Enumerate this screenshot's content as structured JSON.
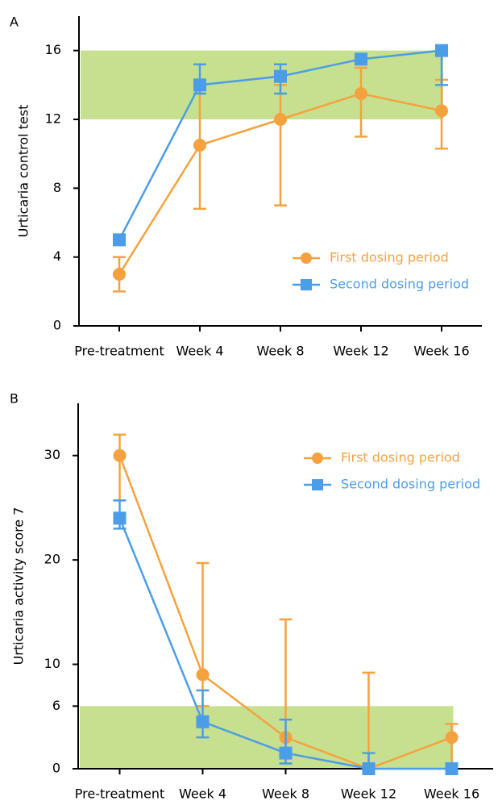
{
  "chart_data": [
    {
      "type": "line",
      "panel": "A",
      "ylabel": "Urticaria control test",
      "categories": [
        "Pre-treatment",
        "Week 4",
        "Week 8",
        "Week 12",
        "Week 16"
      ],
      "ylim": [
        0,
        18
      ],
      "yticks": [
        0,
        4,
        8,
        12,
        16
      ],
      "band": {
        "range": [
          12,
          16
        ],
        "color": "#c6e08f"
      },
      "legend": "lower right",
      "series": [
        {
          "name": "First dosing period",
          "color": "#f5a23e",
          "marker": "circle",
          "values": [
            3,
            10.5,
            12,
            13.5,
            12.5
          ],
          "lower": [
            2,
            6.8,
            7,
            11,
            10.3
          ],
          "upper": [
            4,
            14,
            14,
            15,
            14.3
          ]
        },
        {
          "name": "Second dosing period",
          "color": "#4c9de8",
          "marker": "square",
          "values": [
            5,
            14,
            14.5,
            15.5,
            16
          ],
          "lower": [
            5,
            13.5,
            13.5,
            15.3,
            14
          ],
          "upper": [
            5,
            15.2,
            15.2,
            15.8,
            16
          ]
        }
      ]
    },
    {
      "type": "line",
      "panel": "B",
      "ylabel": "Urticaria activity score 7",
      "categories": [
        "Pre-treatment",
        "Week 4",
        "Week 8",
        "Week 12",
        "Week 16"
      ],
      "ylim": [
        0,
        35
      ],
      "yticks": [
        0,
        6,
        10,
        20,
        30
      ],
      "band": {
        "range": [
          0,
          6
        ],
        "color": "#c6e08f"
      },
      "legend": "upper right",
      "series": [
        {
          "name": "First dosing period",
          "color": "#f5a23e",
          "marker": "circle",
          "values": [
            30,
            9,
            3,
            0,
            3
          ],
          "lower": [
            25.7,
            6,
            0.5,
            0,
            0
          ],
          "upper": [
            32,
            19.7,
            14.3,
            9.2,
            4.3
          ]
        },
        {
          "name": "Second dosing period",
          "color": "#4c9de8",
          "marker": "square",
          "values": [
            24,
            4.5,
            1.5,
            0,
            0
          ],
          "lower": [
            23,
            3,
            0.5,
            0,
            0
          ],
          "upper": [
            25.7,
            7.5,
            4.7,
            1.5,
            0
          ]
        }
      ]
    }
  ]
}
